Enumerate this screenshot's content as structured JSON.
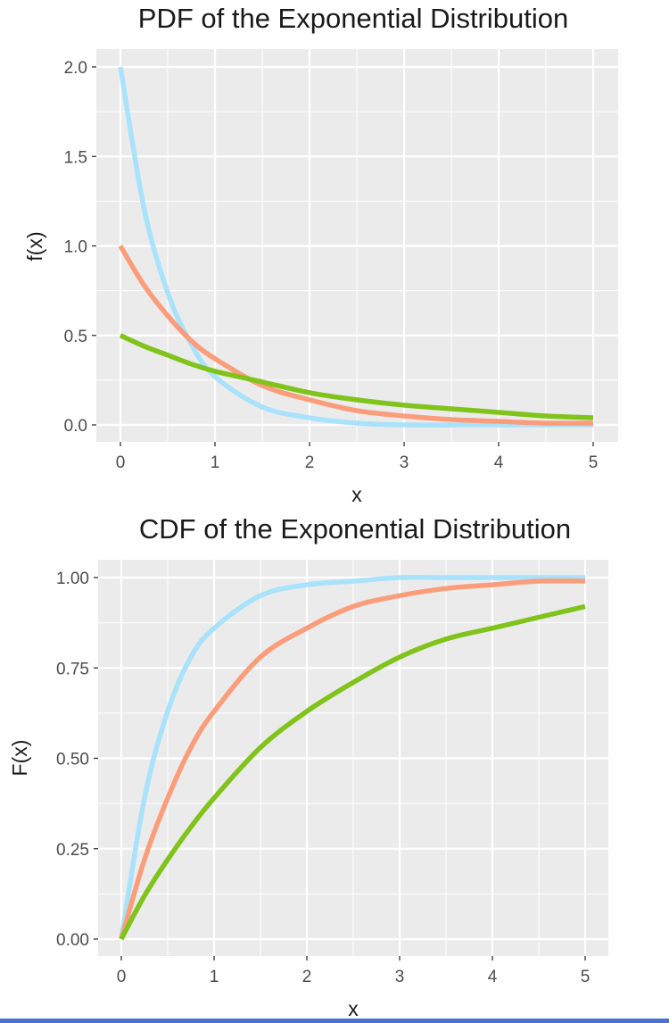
{
  "chart_data": [
    {
      "type": "line",
      "title": "PDF of the Exponential Distribution",
      "xlabel": "x",
      "ylabel": "f(x)",
      "xlim": [
        0,
        5
      ],
      "ylim": [
        0,
        2
      ],
      "x_ticks": [
        "0",
        "1",
        "2",
        "3",
        "4",
        "5"
      ],
      "y_ticks": [
        "0.0",
        "0.5",
        "1.0",
        "1.5",
        "2.0"
      ],
      "grid": true,
      "legend": "none",
      "x": [
        0,
        0.25,
        0.5,
        0.75,
        1,
        1.5,
        2,
        2.5,
        3,
        3.5,
        4,
        4.5,
        5
      ],
      "series": [
        {
          "color": "#a9e2fb",
          "values": [
            2.0,
            1.21,
            0.74,
            0.45,
            0.27,
            0.1,
            0.04,
            0.01,
            0.0,
            0.0,
            0.0,
            0.0,
            0.0
          ]
        },
        {
          "color": "#fb9d7b",
          "values": [
            1.0,
            0.78,
            0.61,
            0.47,
            0.37,
            0.22,
            0.14,
            0.08,
            0.05,
            0.03,
            0.02,
            0.01,
            0.01
          ]
        },
        {
          "color": "#80c31a",
          "values": [
            0.5,
            0.44,
            0.39,
            0.34,
            0.3,
            0.24,
            0.18,
            0.14,
            0.11,
            0.09,
            0.07,
            0.05,
            0.04
          ]
        }
      ]
    },
    {
      "type": "line",
      "title": "CDF of the Exponential Distribution",
      "xlabel": "x",
      "ylabel": "F(x)",
      "xlim": [
        0,
        5
      ],
      "ylim": [
        0,
        1
      ],
      "x_ticks": [
        "0",
        "1",
        "2",
        "3",
        "4",
        "5"
      ],
      "y_ticks": [
        "0.00",
        "0.25",
        "0.50",
        "0.75",
        "1.00"
      ],
      "grid": true,
      "legend": "none",
      "x": [
        0,
        0.25,
        0.5,
        0.75,
        1,
        1.5,
        2,
        2.5,
        3,
        3.5,
        4,
        4.5,
        5
      ],
      "series": [
        {
          "color": "#a9e2fb",
          "values": [
            0.0,
            0.39,
            0.63,
            0.78,
            0.86,
            0.95,
            0.98,
            0.99,
            1.0,
            1.0,
            1.0,
            1.0,
            1.0
          ]
        },
        {
          "color": "#fb9d7b",
          "values": [
            0.0,
            0.22,
            0.39,
            0.53,
            0.63,
            0.78,
            0.86,
            0.92,
            0.95,
            0.97,
            0.98,
            0.99,
            0.99
          ]
        },
        {
          "color": "#80c31a",
          "values": [
            0.0,
            0.12,
            0.22,
            0.31,
            0.39,
            0.53,
            0.63,
            0.71,
            0.78,
            0.83,
            0.86,
            0.89,
            0.92
          ]
        }
      ]
    }
  ]
}
